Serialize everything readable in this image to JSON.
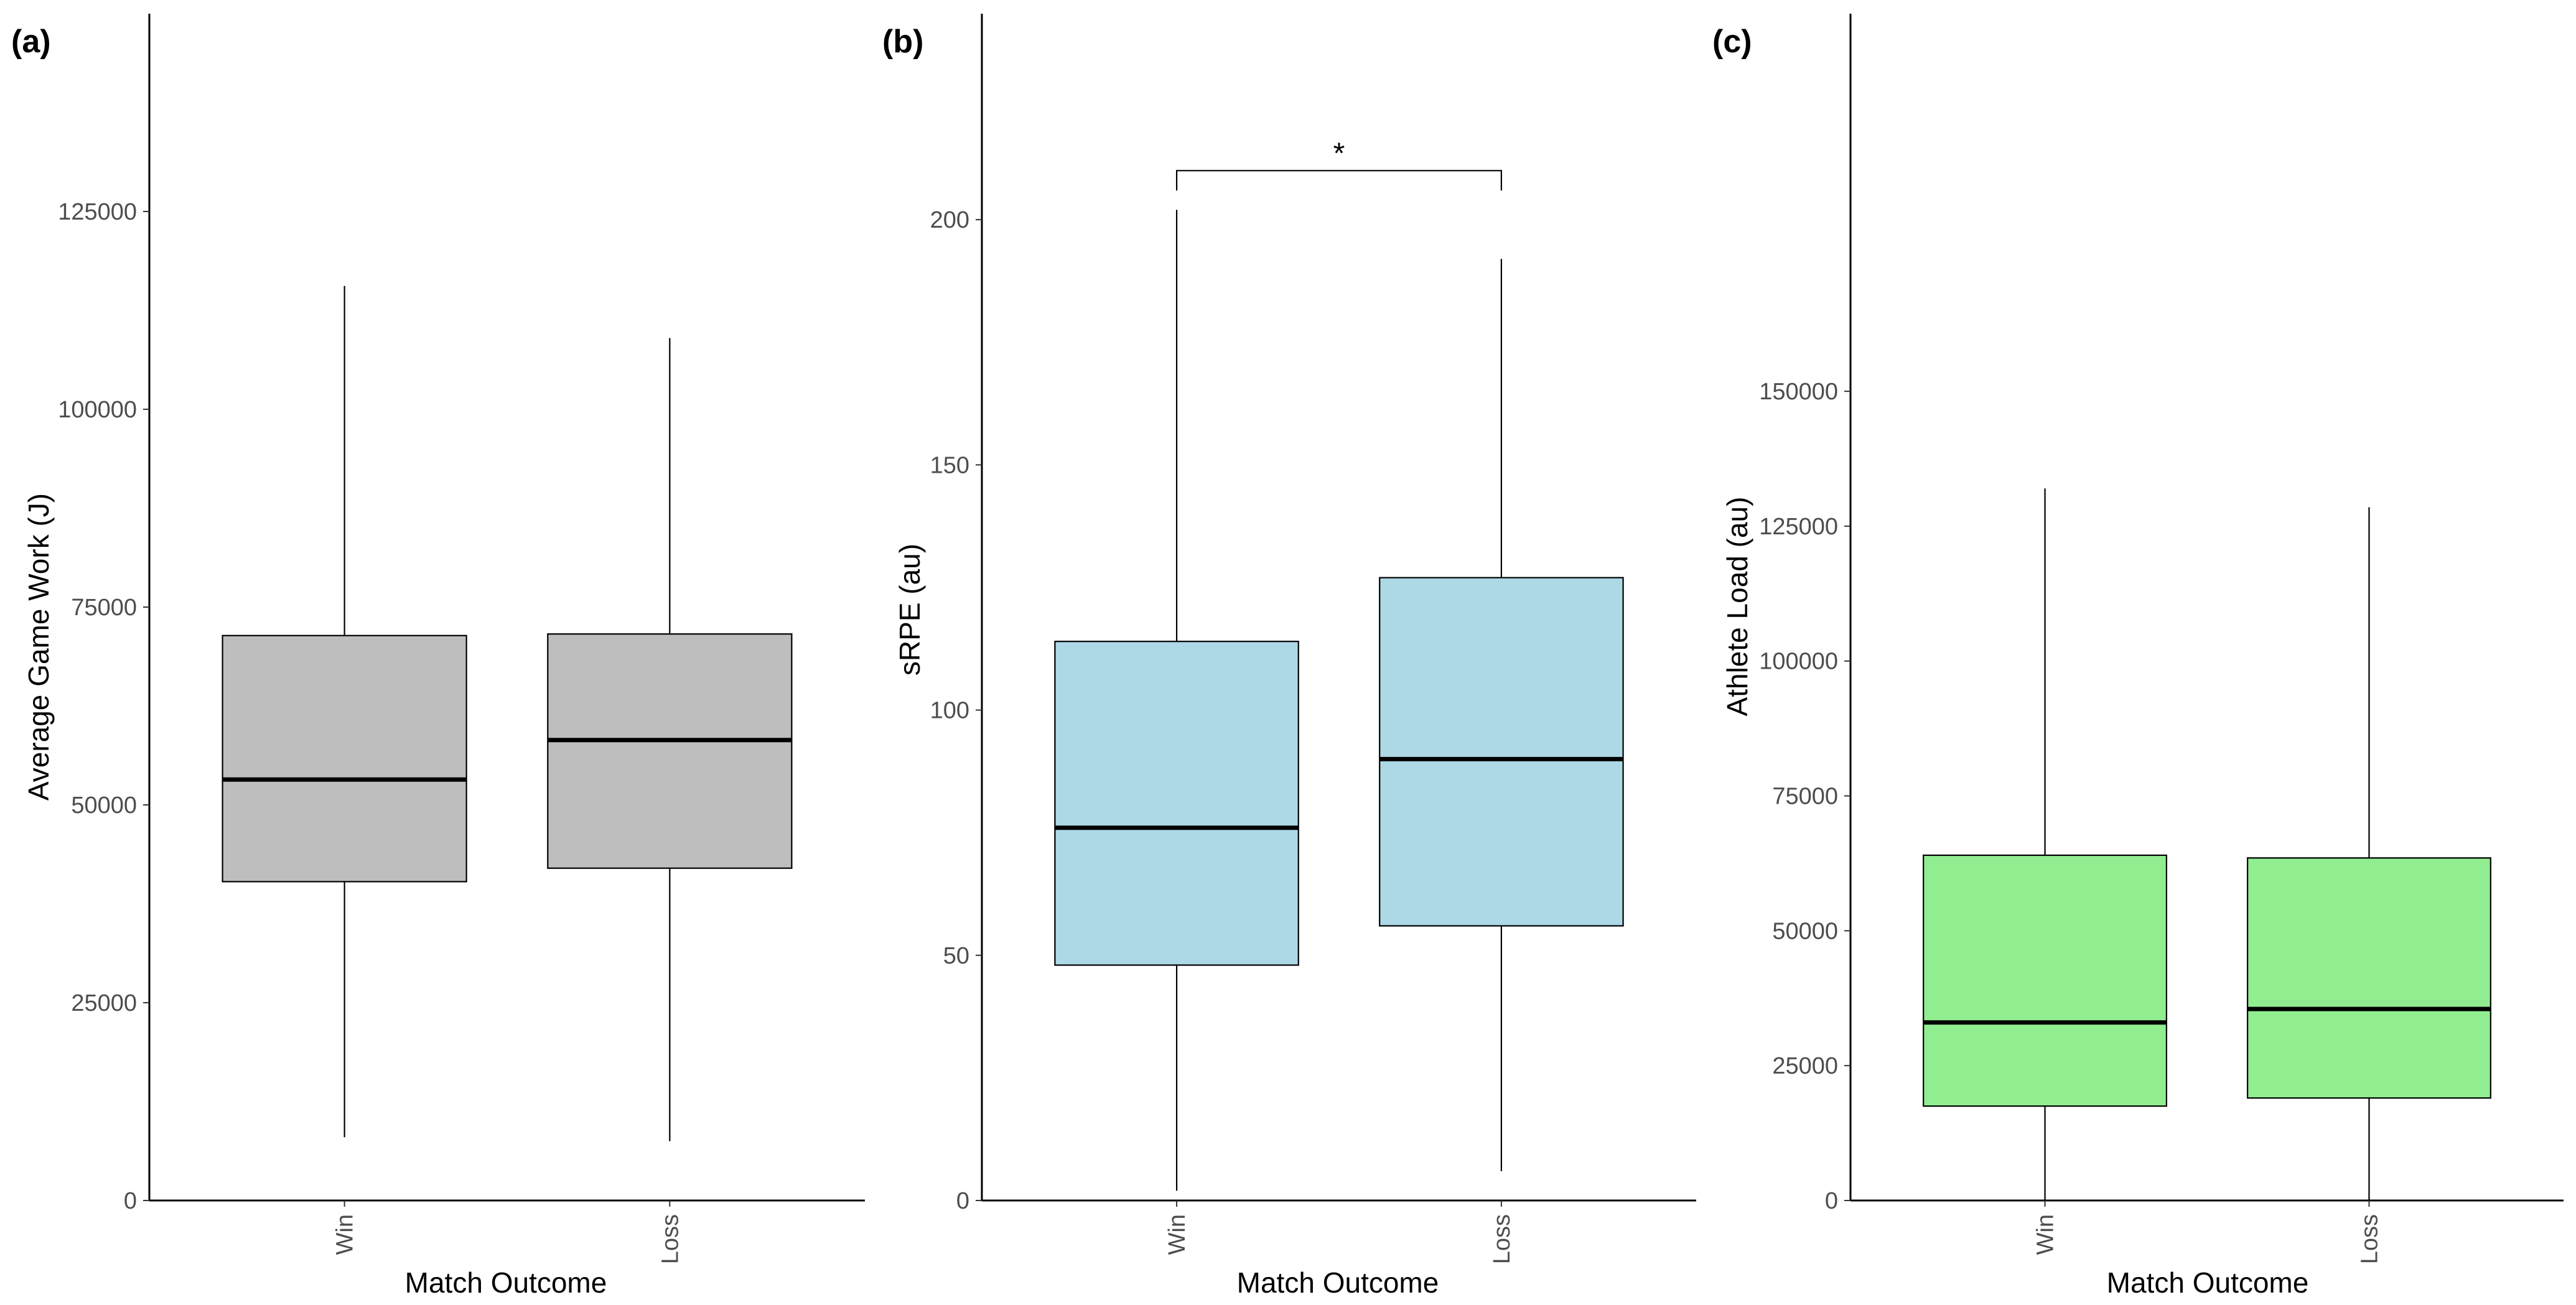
{
  "chart_data": [
    {
      "type": "box",
      "panel_label": "(a)",
      "xlabel": "Match Outcome",
      "ylabel": "Average Game Work (J)",
      "categories": [
        "Win",
        "Loss"
      ],
      "ylim": [
        0,
        150000
      ],
      "yticks": [
        0,
        25000,
        50000,
        75000,
        100000,
        125000
      ],
      "ytick_labels": [
        "0",
        "25000",
        "50000",
        "75000",
        "100000",
        "125000"
      ],
      "fill_color": "#bebebe",
      "boxes": [
        {
          "category": "Win",
          "min": 8000,
          "q1": 40300,
          "median": 53200,
          "q3": 71400,
          "max": 115600
        },
        {
          "category": "Loss",
          "min": 7500,
          "q1": 42000,
          "median": 58200,
          "q3": 71600,
          "max": 109000
        }
      ]
    },
    {
      "type": "box",
      "panel_label": "(b)",
      "xlabel": "Match Outcome",
      "ylabel": "sRPE (au)",
      "categories": [
        "Win",
        "Loss"
      ],
      "ylim": [
        0,
        242
      ],
      "yticks": [
        0,
        50,
        100,
        150,
        200
      ],
      "ytick_labels": [
        "0",
        "50",
        "100",
        "150",
        "200"
      ],
      "fill_color": "#add8e6",
      "boxes": [
        {
          "category": "Win",
          "min": 2,
          "q1": 48,
          "median": 76,
          "q3": 114,
          "max": 202
        },
        {
          "category": "Loss",
          "min": 6,
          "q1": 56,
          "median": 90,
          "q3": 127,
          "max": 192
        }
      ],
      "significance": {
        "between": [
          "Win",
          "Loss"
        ],
        "y": 210,
        "label": "*"
      }
    },
    {
      "type": "box",
      "panel_label": "(c)",
      "xlabel": "Match Outcome",
      "ylabel": "Athlete Load (au)",
      "categories": [
        "Win",
        "Loss"
      ],
      "ylim": [
        0,
        220000
      ],
      "yticks": [
        0,
        25000,
        50000,
        75000,
        100000,
        125000,
        150000
      ],
      "ytick_labels": [
        "0",
        "25000",
        "50000",
        "75000",
        "100000",
        "125000",
        "150000"
      ],
      "fill_color": "#90ee90",
      "boxes": [
        {
          "category": "Win",
          "min": 0,
          "q1": 17500,
          "median": 33000,
          "q3": 64000,
          "max": 132000
        },
        {
          "category": "Loss",
          "min": 0,
          "q1": 19000,
          "median": 35500,
          "q3": 63500,
          "max": 128500
        }
      ]
    }
  ]
}
